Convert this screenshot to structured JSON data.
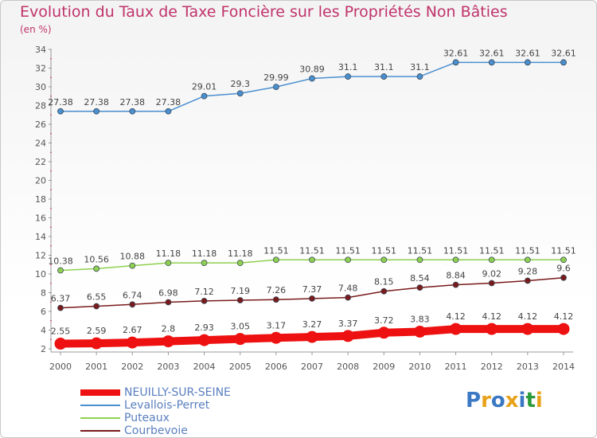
{
  "title": "Evolution du Taux de Taxe Foncière sur les Propriétés Non Bâties",
  "unit": "(en %)",
  "logo": {
    "text": "Proxiti",
    "colors": [
      "#3b78c3",
      "#e8a21a",
      "#3b78c3",
      "#e8a21a",
      "#3b78c3",
      "#2d9a3a",
      "#e8a21a"
    ]
  },
  "chart_data": {
    "type": "line",
    "x": [
      2000,
      2001,
      2002,
      2003,
      2004,
      2005,
      2006,
      2007,
      2008,
      2009,
      2010,
      2011,
      2012,
      2013,
      2014
    ],
    "ylim": [
      2,
      34
    ],
    "yticks": [
      2,
      4,
      6,
      8,
      10,
      12,
      14,
      16,
      18,
      20,
      22,
      24,
      26,
      28,
      30,
      32,
      34
    ],
    "grid": false,
    "legend_position": "bottom-left",
    "series": [
      {
        "name": "NEUILLY-SUR-SEINE",
        "color": "#ee1111",
        "values": [
          2.55,
          2.59,
          2.67,
          2.8,
          2.93,
          3.05,
          3.17,
          3.27,
          3.37,
          3.72,
          3.83,
          4.12,
          4.12,
          4.12,
          4.12
        ],
        "labels": [
          "2.55",
          "2.59",
          "2.67",
          "2.8",
          "2.93",
          "3.05",
          "3.17",
          "3.27",
          "3.37",
          "3.72",
          "3.83",
          "4.12",
          "4.12",
          "4.12",
          "4.12"
        ]
      },
      {
        "name": "Levallois-Perret",
        "color": "#4a8fd0",
        "values": [
          27.38,
          27.38,
          27.38,
          27.38,
          29.01,
          29.3,
          29.99,
          30.89,
          31.1,
          31.1,
          31.1,
          32.61,
          32.61,
          32.61,
          32.61
        ],
        "labels": [
          "27.38",
          "27.38",
          "27.38",
          "27.38",
          "29.01",
          "29.3",
          "29.99",
          "30.89",
          "31.1",
          "31.1",
          "31.1",
          "32.61",
          "32.61",
          "32.61",
          "32.61"
        ]
      },
      {
        "name": "Puteaux",
        "color": "#8fd14f",
        "values": [
          10.38,
          10.56,
          10.88,
          11.18,
          11.18,
          11.18,
          11.51,
          11.51,
          11.51,
          11.51,
          11.51,
          11.51,
          11.51,
          11.51,
          11.51
        ],
        "labels": [
          "10.38",
          "10.56",
          "10.88",
          "11.18",
          "11.18",
          "11.18",
          "11.51",
          "11.51",
          "11.51",
          "11.51",
          "11.51",
          "11.51",
          "11.51",
          "11.51",
          "11.51"
        ]
      },
      {
        "name": "Courbevoie",
        "color": "#7a1a1a",
        "values": [
          6.37,
          6.55,
          6.74,
          6.98,
          7.12,
          7.19,
          7.26,
          7.37,
          7.48,
          8.15,
          8.54,
          8.84,
          9.02,
          9.28,
          9.6
        ],
        "labels": [
          "6.37",
          "6.55",
          "6.74",
          "6.98",
          "7.12",
          "7.19",
          "7.26",
          "7.37",
          "7.48",
          "8.15",
          "8.54",
          "8.84",
          "9.02",
          "9.28",
          "9.6"
        ]
      }
    ]
  }
}
